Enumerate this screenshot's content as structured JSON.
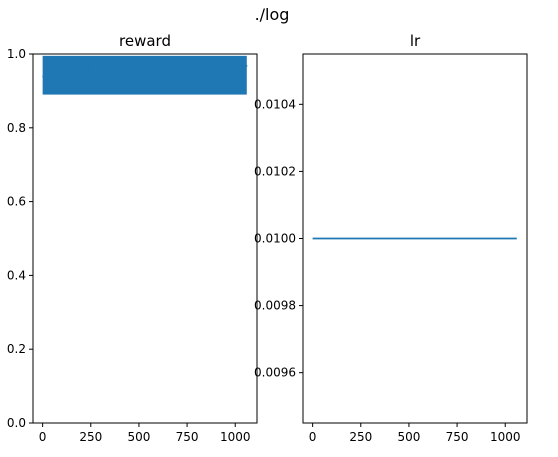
{
  "suptitle": "./log",
  "series_color": "#1f77b4",
  "chart_data": [
    {
      "type": "line",
      "title": "reward",
      "xlabel": "",
      "ylabel": "",
      "xlim": [
        -50,
        1113
      ],
      "ylim": [
        0.0,
        1.0
      ],
      "xticks": [
        0,
        250,
        500,
        750,
        1000
      ],
      "xtick_labels": [
        "0",
        "250",
        "500",
        "750",
        "1000"
      ],
      "yticks": [
        0.0,
        0.2,
        0.4,
        0.6,
        0.8,
        1.0
      ],
      "ytick_labels": [
        "0.0",
        "0.2",
        "0.4",
        "0.6",
        "0.8",
        "1.0"
      ],
      "grid": false,
      "legend": "none",
      "series": [
        {
          "x": [
            0,
            30,
            60,
            90,
            120,
            150,
            180,
            210,
            240,
            270,
            300,
            330,
            360,
            390,
            420,
            450,
            480,
            510,
            540,
            570,
            600,
            630,
            660,
            690,
            720,
            750,
            780,
            810,
            840,
            870,
            900,
            930,
            960,
            990,
            1020,
            1050,
            1060
          ],
          "y": [
            0.94,
            0.93,
            0.96,
            0.92,
            0.97,
            0.93,
            0.95,
            0.94,
            0.97,
            0.92,
            0.96,
            0.95,
            0.93,
            0.97,
            0.94,
            0.96,
            0.93,
            0.97,
            0.95,
            0.94,
            0.96,
            0.93,
            0.97,
            0.95,
            0.94,
            0.96,
            0.95,
            0.97,
            0.94,
            0.96,
            0.95,
            0.97,
            0.96,
            0.94,
            0.97,
            0.96,
            0.97
          ],
          "band_lower": 0.89,
          "band_upper": 0.995
        }
      ]
    },
    {
      "type": "line",
      "title": "lr",
      "xlabel": "",
      "ylabel": "",
      "xlim": [
        -50,
        1113
      ],
      "ylim": [
        0.00945,
        0.01055
      ],
      "xticks": [
        0,
        250,
        500,
        750,
        1000
      ],
      "xtick_labels": [
        "0",
        "250",
        "500",
        "750",
        "1000"
      ],
      "yticks": [
        0.0096,
        0.0098,
        0.01,
        0.0102,
        0.0104
      ],
      "ytick_labels": [
        "0.0096",
        "0.0098",
        "0.0100",
        "0.0102",
        "0.0104"
      ],
      "grid": false,
      "legend": "none",
      "series": [
        {
          "x": [
            0,
            1060
          ],
          "y": [
            0.01,
            0.01
          ]
        }
      ]
    }
  ]
}
